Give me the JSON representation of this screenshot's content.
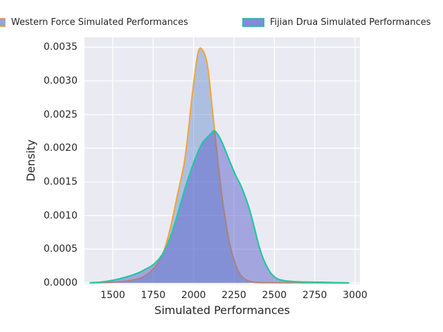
{
  "legend": {
    "entries": [
      {
        "label": "Western Force Simulated Performances",
        "swatch_fill": "#8BA9DA",
        "swatch_border": "#F0A53E"
      },
      {
        "label": "Fijian Drua Simulated Performances",
        "swatch_fill": "#8589D7",
        "swatch_border": "#23C5A4"
      }
    ]
  },
  "chart_data": {
    "type": "area",
    "subtype": "kde-density-plot",
    "title": "",
    "xlabel": "Simulated Performances",
    "ylabel": "Density",
    "x_ticks": [
      1500,
      1750,
      2000,
      2250,
      2500,
      2750,
      3000
    ],
    "y_ticks": [
      "0.0000",
      "0.0005",
      "0.0010",
      "0.0015",
      "0.0020",
      "0.0025",
      "0.0030",
      "0.0035"
    ],
    "xlim": [
      1325,
      3030
    ],
    "ylim": [
      0,
      0.00365
    ],
    "grid": true,
    "legend_position": "top",
    "colors": {
      "plot_background": "#EAEAF2",
      "grid": "#FFFFFF",
      "text": "#262626"
    },
    "series": [
      {
        "name": "Western Force Simulated Performances",
        "stroke": "#F0A53E",
        "fill": "rgba(100,140,205,0.45)",
        "peak": {
          "x": 2040,
          "density": 0.00349
        },
        "points": [
          [
            1400,
            2e-06
          ],
          [
            1500,
            1e-05
          ],
          [
            1560,
            2e-05
          ],
          [
            1620,
            4e-05
          ],
          [
            1680,
            8e-05
          ],
          [
            1730,
            0.00016
          ],
          [
            1780,
            0.0003
          ],
          [
            1820,
            0.0005
          ],
          [
            1860,
            0.00085
          ],
          [
            1900,
            0.0013
          ],
          [
            1940,
            0.00175
          ],
          [
            1965,
            0.0022
          ],
          [
            1985,
            0.00265
          ],
          [
            2000,
            0.00295
          ],
          [
            2012,
            0.00318
          ],
          [
            2022,
            0.00334
          ],
          [
            2032,
            0.00345
          ],
          [
            2042,
            0.00349
          ],
          [
            2055,
            0.00346
          ],
          [
            2068,
            0.0034
          ],
          [
            2082,
            0.00328
          ],
          [
            2096,
            0.00304
          ],
          [
            2110,
            0.00272
          ],
          [
            2125,
            0.00238
          ],
          [
            2142,
            0.002
          ],
          [
            2160,
            0.0016
          ],
          [
            2180,
            0.0012
          ],
          [
            2200,
            0.0009
          ],
          [
            2220,
            0.00062
          ],
          [
            2240,
            0.00042
          ],
          [
            2265,
            0.00024
          ],
          [
            2290,
            0.00012
          ],
          [
            2320,
            5e-05
          ],
          [
            2360,
            1.5e-05
          ],
          [
            2410,
            4e-06
          ],
          [
            2550,
            2e-06
          ],
          [
            2800,
            1e-06
          ],
          [
            2950,
            0
          ]
        ]
      },
      {
        "name": "Fijian Drua Simulated Performances",
        "stroke": "#23C5A4",
        "fill": "rgba(92,98,202,0.5)",
        "peak": {
          "x": 2125,
          "density": 0.00226
        },
        "points": [
          [
            1360,
            2e-06
          ],
          [
            1420,
            1e-05
          ],
          [
            1480,
            3e-05
          ],
          [
            1540,
            6e-05
          ],
          [
            1600,
            0.0001
          ],
          [
            1660,
            0.00015
          ],
          [
            1700,
            0.0002
          ],
          [
            1750,
            0.00027
          ],
          [
            1800,
            0.0004
          ],
          [
            1840,
            0.00058
          ],
          [
            1880,
            0.00085
          ],
          [
            1920,
            0.00118
          ],
          [
            1960,
            0.0015
          ],
          [
            2000,
            0.00178
          ],
          [
            2030,
            0.00196
          ],
          [
            2055,
            0.00208
          ],
          [
            2080,
            0.00215
          ],
          [
            2105,
            0.00221
          ],
          [
            2125,
            0.00226
          ],
          [
            2145,
            0.00222
          ],
          [
            2170,
            0.00212
          ],
          [
            2200,
            0.00195
          ],
          [
            2230,
            0.00177
          ],
          [
            2260,
            0.0016
          ],
          [
            2290,
            0.00146
          ],
          [
            2320,
            0.00128
          ],
          [
            2345,
            0.0011
          ],
          [
            2370,
            0.00088
          ],
          [
            2395,
            0.00064
          ],
          [
            2420,
            0.00043
          ],
          [
            2450,
            0.00026
          ],
          [
            2480,
            0.00014
          ],
          [
            2520,
            6e-05
          ],
          [
            2570,
            3e-05
          ],
          [
            2650,
            1.5e-05
          ],
          [
            2750,
            1e-05
          ],
          [
            2870,
            4e-06
          ],
          [
            2960,
            0
          ]
        ]
      }
    ]
  }
}
